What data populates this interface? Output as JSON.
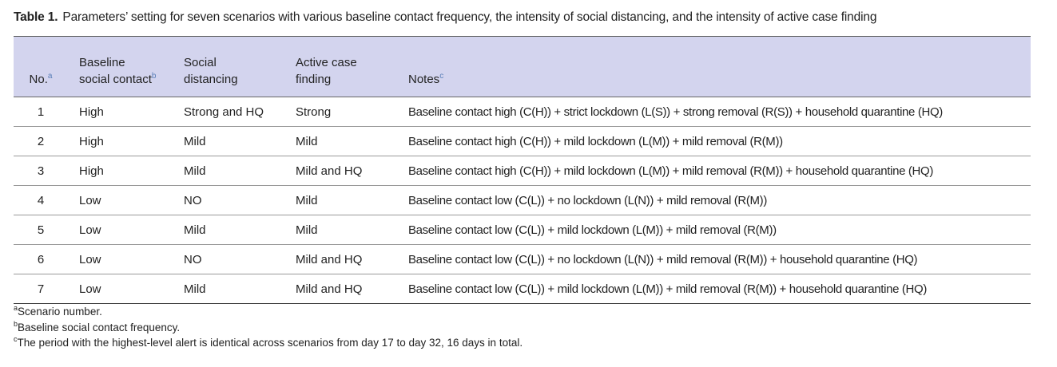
{
  "table": {
    "label": "Table 1.",
    "caption": "Parameters’ setting for seven scenarios with various baseline contact frequency, the intensity of social distancing, and the intensity of active case finding",
    "columns": [
      {
        "lines": [
          "No."
        ],
        "note": "a"
      },
      {
        "lines": [
          "Baseline",
          "social contact"
        ],
        "note": "b"
      },
      {
        "lines": [
          "Social",
          "distancing"
        ]
      },
      {
        "lines": [
          "Active case",
          "finding"
        ]
      },
      {
        "lines": [
          "Notes"
        ],
        "note": "c"
      }
    ],
    "rows": [
      [
        "1",
        "High",
        "Strong and HQ",
        "Strong",
        "Baseline contact high (C(H)) + strict lockdown (L(S)) + strong removal (R(S)) + household quarantine (HQ)"
      ],
      [
        "2",
        "High",
        "Mild",
        "Mild",
        "Baseline contact high (C(H)) + mild lockdown (L(M)) + mild removal (R(M))"
      ],
      [
        "3",
        "High",
        "Mild",
        "Mild and HQ",
        "Baseline contact high (C(H)) + mild lockdown (L(M)) + mild removal (R(M)) + household quarantine (HQ)"
      ],
      [
        "4",
        "Low",
        "NO",
        "Mild",
        "Baseline contact low (C(L)) + no lockdown (L(N)) + mild removal (R(M))"
      ],
      [
        "5",
        "Low",
        "Mild",
        "Mild",
        "Baseline contact low (C(L)) + mild lockdown (L(M)) + mild removal (R(M))"
      ],
      [
        "6",
        "Low",
        "NO",
        "Mild and HQ",
        "Baseline contact low (C(L)) + no lockdown (L(N)) + mild removal (R(M)) + household quarantine (HQ)"
      ],
      [
        "7",
        "Low",
        "Mild",
        "Mild and HQ",
        "Baseline contact low (C(L)) + mild lockdown (L(M)) + mild removal (R(M)) + household quarantine (HQ)"
      ]
    ],
    "footnotes": [
      {
        "mark": "a",
        "text": "Scenario number."
      },
      {
        "mark": "b",
        "text": "Baseline social contact frequency."
      },
      {
        "mark": "c",
        "text": "The period with the highest-level alert is identical across scenarios from day 17 to day 32, 16 days in total."
      }
    ]
  }
}
